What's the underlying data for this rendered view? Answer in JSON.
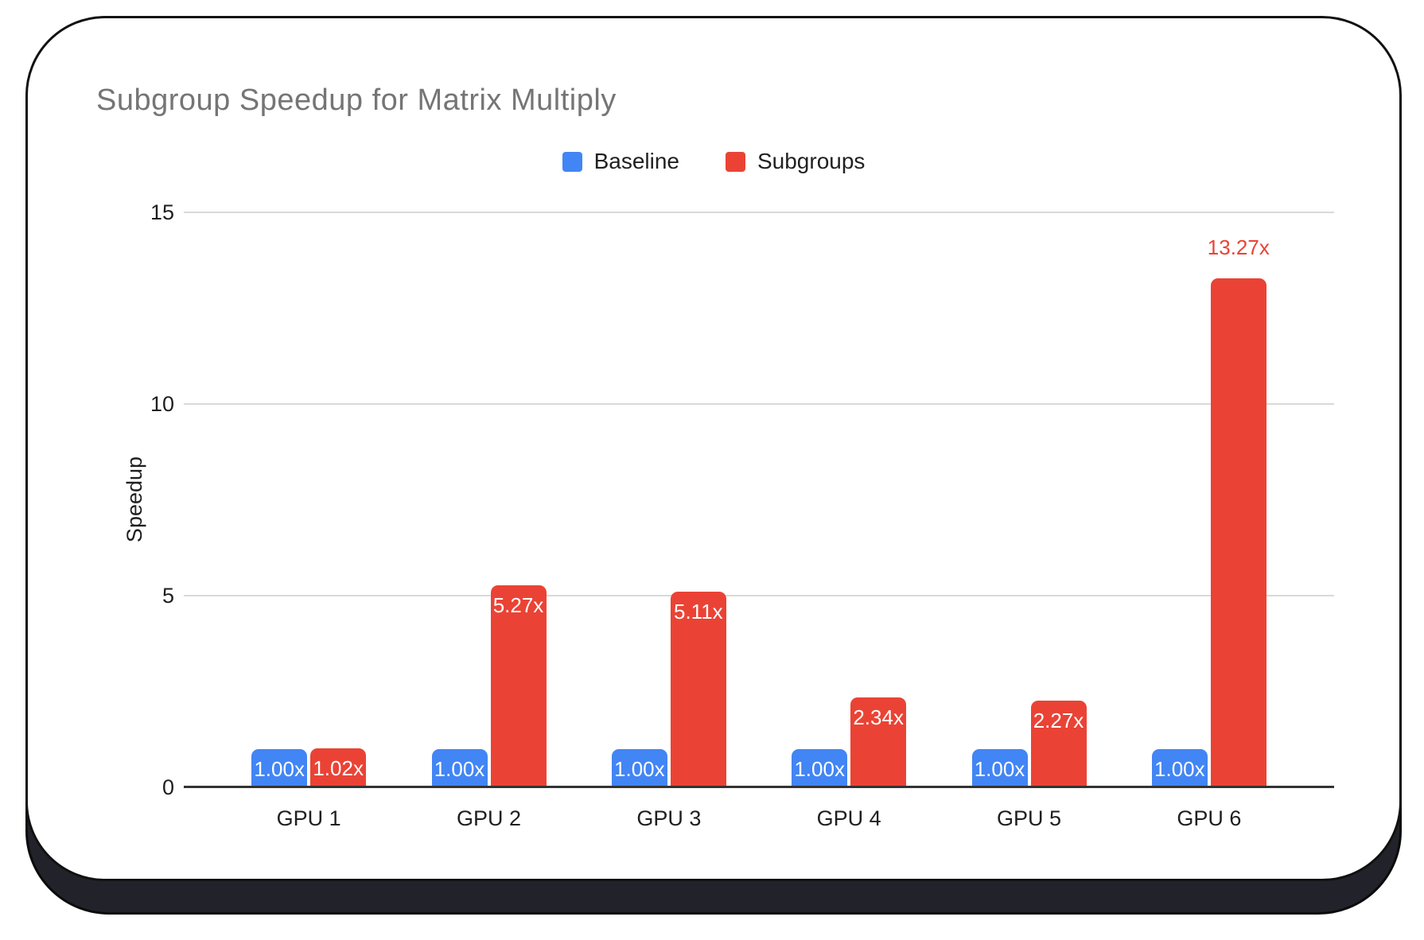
{
  "colors": {
    "card_background": "#ffffff",
    "frame_border": "#111111",
    "frame_shadow": "#22222a",
    "title_text": "#757575",
    "axis_text": "#1f1f1f",
    "gridline": "#d9d9d9",
    "axis_line": "#333333",
    "bar_label_inside": "#ffffff",
    "baseline_series": "#4285F4",
    "subgroups_series": "#EA4335"
  },
  "chart_data": {
    "type": "bar",
    "title": "Subgroup Speedup for Matrix Multiply",
    "xlabel": "",
    "ylabel": "Speedup",
    "categories": [
      "GPU 1",
      "GPU 2",
      "GPU 3",
      "GPU 4",
      "GPU 5",
      "GPU 6"
    ],
    "series": [
      {
        "name": "Baseline",
        "color": "#4285F4",
        "values": [
          1.0,
          1.0,
          1.0,
          1.0,
          1.0,
          1.0
        ],
        "data_labels": [
          "1.00x",
          "1.00x",
          "1.00x",
          "1.00x",
          "1.00x",
          "1.00x"
        ],
        "label_placement": [
          "inside",
          "inside",
          "inside",
          "inside",
          "inside",
          "inside"
        ]
      },
      {
        "name": "Subgroups",
        "color": "#EA4335",
        "values": [
          1.02,
          5.27,
          5.11,
          2.34,
          2.27,
          13.27
        ],
        "data_labels": [
          "1.02x",
          "5.27x",
          "5.11x",
          "2.34x",
          "2.27x",
          "13.27x"
        ],
        "label_placement": [
          "inside",
          "inside",
          "inside",
          "inside",
          "inside",
          "outside"
        ]
      }
    ],
    "ylim": [
      0,
      15
    ],
    "yticks": [
      0,
      5,
      10,
      15
    ],
    "grid": true,
    "legend_position": "top"
  }
}
